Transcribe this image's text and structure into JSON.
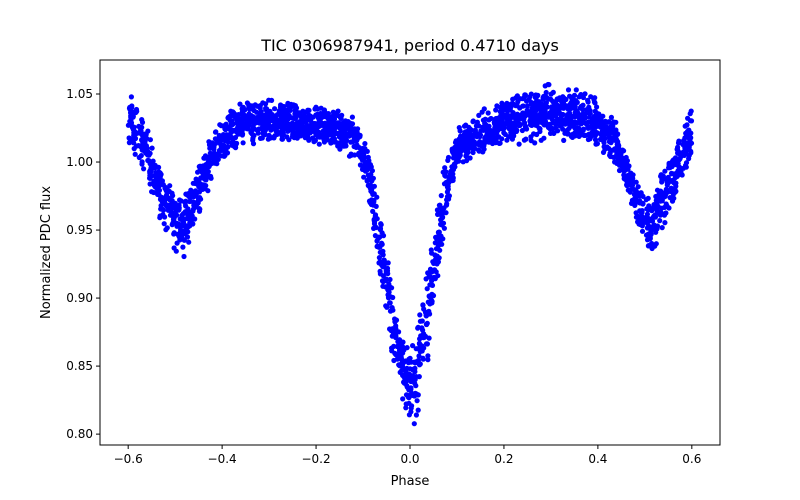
{
  "chart_data": {
    "type": "scatter",
    "title": "TIC 0306987941, period 0.4710 days",
    "xlabel": "Phase",
    "ylabel": "Normalized PDC flux",
    "xlim": [
      -0.66,
      0.66
    ],
    "ylim": [
      0.792,
      1.075
    ],
    "grid": false,
    "x_ticks": [
      {
        "value": -0.6,
        "label": "−0.6"
      },
      {
        "value": -0.4,
        "label": "−0.4"
      },
      {
        "value": -0.2,
        "label": "−0.2"
      },
      {
        "value": 0.0,
        "label": "0.0"
      },
      {
        "value": 0.2,
        "label": "0.2"
      },
      {
        "value": 0.4,
        "label": "0.4"
      },
      {
        "value": 0.6,
        "label": "0.6"
      }
    ],
    "y_ticks": [
      {
        "value": 0.8,
        "label": "0.80"
      },
      {
        "value": 0.85,
        "label": "0.85"
      },
      {
        "value": 0.9,
        "label": "0.90"
      },
      {
        "value": 0.95,
        "label": "0.95"
      },
      {
        "value": 1.0,
        "label": "1.00"
      },
      {
        "value": 1.05,
        "label": "1.05"
      }
    ],
    "series": [
      {
        "name": "PDC flux",
        "color": "#0000ff",
        "envelope": {
          "phase": [
            -0.6,
            -0.58,
            -0.56,
            -0.54,
            -0.52,
            -0.5,
            -0.48,
            -0.46,
            -0.44,
            -0.42,
            -0.4,
            -0.38,
            -0.35,
            -0.3,
            -0.25,
            -0.2,
            -0.15,
            -0.12,
            -0.1,
            -0.08,
            -0.06,
            -0.04,
            -0.02,
            -0.01,
            0.0,
            0.01,
            0.02,
            0.04,
            0.06,
            0.08,
            0.1,
            0.15,
            0.2,
            0.25,
            0.3,
            0.35,
            0.4,
            0.44,
            0.46,
            0.48,
            0.5,
            0.52,
            0.54,
            0.56,
            0.58,
            0.6
          ],
          "flux_low": [
            1.01,
            1.0,
            0.985,
            0.962,
            0.945,
            0.935,
            0.928,
            0.95,
            0.97,
            0.985,
            0.997,
            1.005,
            1.012,
            1.015,
            1.012,
            1.01,
            1.008,
            1.0,
            0.99,
            0.95,
            0.9,
            0.86,
            0.828,
            0.812,
            0.803,
            0.805,
            0.815,
            0.85,
            0.91,
            0.96,
            0.99,
            1.005,
            1.01,
            1.012,
            1.015,
            1.012,
            1.008,
            0.995,
            0.978,
            0.958,
            0.94,
            0.93,
            0.948,
            0.968,
            0.985,
            1.0
          ],
          "flux_high": [
            1.05,
            1.045,
            1.03,
            1.01,
            0.99,
            0.978,
            0.975,
            0.99,
            1.01,
            1.025,
            1.035,
            1.042,
            1.045,
            1.046,
            1.045,
            1.043,
            1.04,
            1.035,
            1.025,
            1.0,
            0.96,
            0.92,
            0.885,
            0.872,
            0.865,
            0.87,
            0.89,
            0.93,
            0.98,
            1.01,
            1.025,
            1.04,
            1.048,
            1.055,
            1.058,
            1.057,
            1.05,
            1.03,
            1.01,
            0.988,
            0.975,
            0.985,
            1.0,
            1.015,
            1.03,
            1.04
          ]
        }
      }
    ]
  }
}
